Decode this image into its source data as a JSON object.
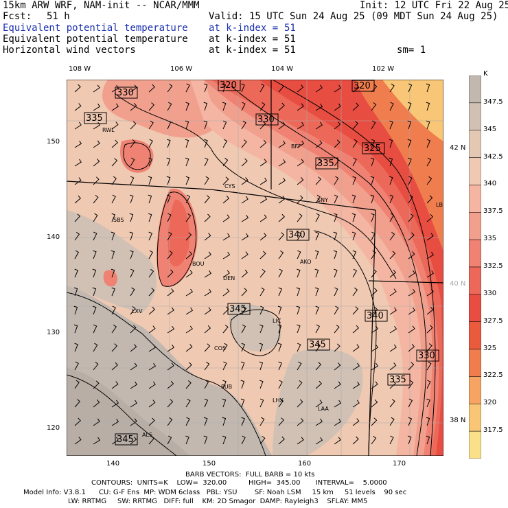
{
  "header": {
    "model": "15km ARW WRF, NAM-init -- NCAR/MMM",
    "init": "Init: 12 UTC Fri 22 Aug 25",
    "fcst_label": "Fcst:",
    "fcst_value": "51 h",
    "valid": "Valid: 15 UTC Sun 24 Aug 25 (09 MDT Sun 24 Aug 25)",
    "fields": [
      {
        "name": "Equivalent potential temperature",
        "level": "at k-index =",
        "k": "51",
        "color": "#1a2fb0"
      },
      {
        "name": "Equivalent potential temperature",
        "level": "at k-index =",
        "k": "51",
        "color": "#000000"
      },
      {
        "name": "Horizontal wind vectors",
        "level": "at k-index =",
        "k": "51",
        "color": "#000000"
      }
    ],
    "sm": "sm= 1"
  },
  "axes": {
    "lon_labels": [
      "108 W",
      "106 W",
      "104 W",
      "102 W"
    ],
    "grid_x_labels": [
      "140",
      "150",
      "160",
      "170"
    ],
    "grid_y_labels": [
      "150",
      "140",
      "130",
      "120"
    ],
    "lat_labels": [
      {
        "text": "42 N",
        "color": "#000000"
      },
      {
        "text": "40 N",
        "color": "#aaaaaa"
      },
      {
        "text": "38 N",
        "color": "#000000"
      }
    ]
  },
  "colorbar": {
    "unit": "K",
    "labels": [
      "347.5",
      "345",
      "342.5",
      "340",
      "337.5",
      "335",
      "332.5",
      "330",
      "327.5",
      "325",
      "322.5",
      "320",
      "317.5"
    ],
    "colors": [
      "#c2b8b0",
      "#d0c1b4",
      "#e3c8b4",
      "#f0c9b2",
      "#f4b6a2",
      "#f2a08e",
      "#ef8273",
      "#ec6858",
      "#e84d42",
      "#ea5a3d",
      "#f07d4e",
      "#f5a463",
      "#f8c676",
      "#fbe08a"
    ]
  },
  "stations": [
    "RWL",
    "CYS",
    "BFF",
    "SNY",
    "SBS",
    "BOU",
    "AKO",
    "DEN",
    "LXV",
    "LIC",
    "COS",
    "PUB",
    "LHX",
    "LAA",
    "ALS",
    "LBF"
  ],
  "contour_labels": [
    "330",
    "320",
    "320",
    "335",
    "330",
    "325",
    "335",
    "340",
    "345",
    "340",
    "345",
    "330",
    "335",
    "345"
  ],
  "footer": {
    "barb": "BARB VECTORS:  FULL BARB = 10 kts",
    "contours": "CONTOURS:  UNITS=K    LOW=  320.00          HIGH=  345.00       INTERVAL=    5.0000",
    "model_info": "Model Info: V3.8.1      CU: G-F Ens  MP: WDM 6class   PBL: YSU        SF: Noah LSM     15 km     51 levels    90 sec",
    "physics": "LW: RRTMG     SW: RRTMG   DIFF: full    KM: 2D Smagor  DAMP: Rayleigh3    SFLAY: MM5"
  }
}
